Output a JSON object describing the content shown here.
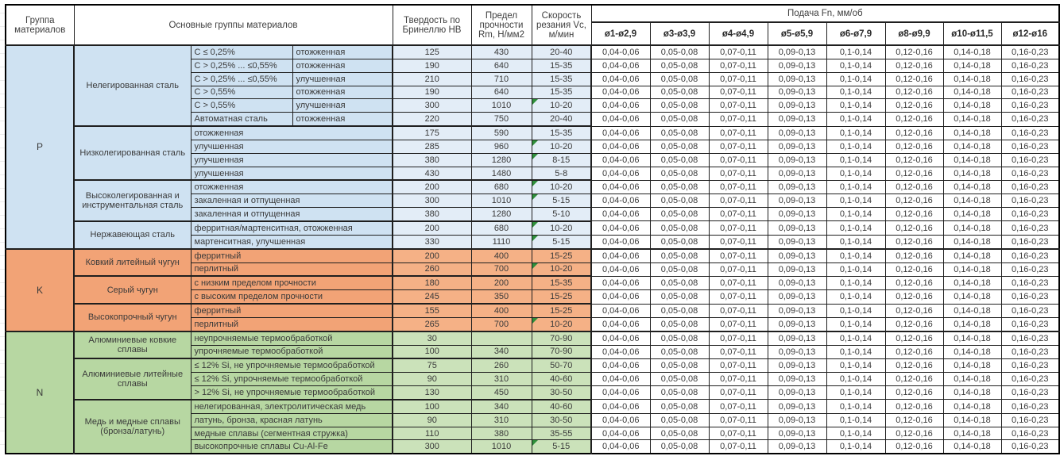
{
  "table": {
    "headers": {
      "group": "Группа материалов",
      "main_groups": "Основные группы материалов",
      "hardness": "Твердость по Бринеллю НВ",
      "strength": "Предел прочности Rm, Н/мм2",
      "speed": "Скорость резания Vc, м/мин",
      "feed": "Подача Fn, мм/об",
      "diameters": [
        "ø1-ø2,9",
        "ø3-ø3,9",
        "ø4-ø4,9",
        "ø5-ø5,9",
        "ø6-ø7,9",
        "ø8-ø9,9",
        "ø10-ø11,5",
        "ø12-ø16"
      ]
    },
    "feed_values_all_rows": [
      "0,04-0,06",
      "0,05-0,08",
      "0,07-0,11",
      "0,09-0,13",
      "0,1-0,14",
      "0,12-0,16",
      "0,14-0,18",
      "0,16-0,23"
    ],
    "colors": {
      "P": {
        "main": "#cfe2f2",
        "values": "#e3edf7"
      },
      "K": {
        "main": "#f2a376",
        "values": "#f5b186"
      },
      "N": {
        "main": "#b7d7a2",
        "values": "#cbe2ba"
      },
      "note_marker": "#2f8f3b"
    },
    "groups": [
      {
        "letter": "P",
        "subgroups": [
          {
            "name": "Нелегированная сталь",
            "rows": [
              {
                "cond1": "C ≤ 0,25%",
                "cond2": "отожженная",
                "hb": "125",
                "rm": "430",
                "vc": "20-40",
                "vc_note_marker": false
              },
              {
                "cond1": "C > 0,25% ... ≤0,55%",
                "cond2": "отожженная",
                "hb": "190",
                "rm": "640",
                "vc": "15-35",
                "vc_note_marker": false
              },
              {
                "cond1": "C > 0,25% ... ≤0,55%",
                "cond2": "улучшенная",
                "hb": "210",
                "rm": "710",
                "vc": "15-35",
                "vc_note_marker": false
              },
              {
                "cond1": "C > 0,55%",
                "cond2": "отожженная",
                "hb": "190",
                "rm": "640",
                "vc": "15-35",
                "vc_note_marker": false
              },
              {
                "cond1": "C > 0,55%",
                "cond2": "улучшенная",
                "hb": "300",
                "rm": "1010",
                "vc": "10-20",
                "vc_note_marker": true
              },
              {
                "cond1": "Автоматная сталь",
                "cond2": "отожженная",
                "hb": "220",
                "rm": "750",
                "vc": "20-40",
                "vc_note_marker": false
              }
            ]
          },
          {
            "name": "Низколегированная сталь",
            "rows": [
              {
                "cond": "отожженная",
                "hb": "175",
                "rm": "590",
                "vc": "15-35",
                "vc_note_marker": false
              },
              {
                "cond": "улучшенная",
                "hb": "285",
                "rm": "960",
                "vc": "10-20",
                "vc_note_marker": true
              },
              {
                "cond": "улучшенная",
                "hb": "380",
                "rm": "1280",
                "vc": "8-15",
                "vc_note_marker": true
              },
              {
                "cond": "улучшенная",
                "hb": "430",
                "rm": "1480",
                "vc": "5-8",
                "vc_note_marker": false
              }
            ]
          },
          {
            "name": "Высоколегированная и инструментальная сталь",
            "rows": [
              {
                "cond": "отожженная",
                "hb": "200",
                "rm": "680",
                "vc": "10-20",
                "vc_note_marker": true
              },
              {
                "cond": "закаленная и отпущенная",
                "hb": "300",
                "rm": "1010",
                "vc": "5-15",
                "vc_note_marker": true
              },
              {
                "cond": "закаленная и отпущенная",
                "hb": "380",
                "rm": "1280",
                "vc": "5-10",
                "vc_note_marker": false
              }
            ]
          },
          {
            "name": "Нержавеющая сталь",
            "rows": [
              {
                "cond": "ферритная/мартенситная, отожженная",
                "hb": "200",
                "rm": "680",
                "vc": "10-20",
                "vc_note_marker": true
              },
              {
                "cond": "мартенситная, улучшенная",
                "hb": "330",
                "rm": "1110",
                "vc": "5-15",
                "vc_note_marker": true
              }
            ]
          }
        ]
      },
      {
        "letter": "K",
        "subgroups": [
          {
            "name": "Ковкий литейный чугун",
            "rows": [
              {
                "cond": "ферритный",
                "hb": "200",
                "rm": "400",
                "vc": "15-25",
                "vc_note_marker": false
              },
              {
                "cond": "перлитный",
                "hb": "260",
                "rm": "700",
                "vc": "10-20",
                "vc_note_marker": true
              }
            ]
          },
          {
            "name": "Серый чугун",
            "rows": [
              {
                "cond": "с низким пределом прочности",
                "hb": "180",
                "rm": "200",
                "vc": "15-35",
                "vc_note_marker": false
              },
              {
                "cond": "с высоким пределом прочности",
                "hb": "245",
                "rm": "350",
                "vc": "15-25",
                "vc_note_marker": false
              }
            ]
          },
          {
            "name": "Высокопрочный чугун",
            "rows": [
              {
                "cond": "ферритный",
                "hb": "155",
                "rm": "400",
                "vc": "15-25",
                "vc_note_marker": false
              },
              {
                "cond": "перлитный",
                "hb": "265",
                "rm": "700",
                "vc": "10-20",
                "vc_note_marker": true
              }
            ]
          }
        ]
      },
      {
        "letter": "N",
        "subgroups": [
          {
            "name": "Алюминиевые ковкие сплавы",
            "rows": [
              {
                "cond": "неупрочняемые термообработкой",
                "hb": "30",
                "rm": "",
                "vc": "70-90",
                "vc_note_marker": false
              },
              {
                "cond": "упрочняемые термообработкой",
                "hb": "100",
                "rm": "340",
                "vc": "70-90",
                "vc_note_marker": false
              }
            ]
          },
          {
            "name": "Алюминиевые литейные сплавы",
            "rows": [
              {
                "cond": "≤ 12% Si, не упрочняемые термообработкой",
                "hb": "75",
                "rm": "260",
                "vc": "50-70",
                "vc_note_marker": false
              },
              {
                "cond": "≤ 12% Si, упрочняемые термообработкой",
                "hb": "90",
                "rm": "310",
                "vc": "40-60",
                "vc_note_marker": false
              },
              {
                "cond": "> 12% Si, не упрочняемые термообработкой",
                "hb": "130",
                "rm": "450",
                "vc": "30-50",
                "vc_note_marker": false
              }
            ]
          },
          {
            "name": "Медь и медные сплавы (бронза/латунь)",
            "rows": [
              {
                "cond": "нелегированная, электролитическая медь",
                "hb": "100",
                "rm": "340",
                "vc": "40-60",
                "vc_note_marker": false
              },
              {
                "cond": "латунь, бронза, красная латунь",
                "hb": "90",
                "rm": "310",
                "vc": "30-50",
                "vc_note_marker": false
              },
              {
                "cond": "медные сплавы (сегментная стружка)",
                "hb": "110",
                "rm": "380",
                "vc": "35-55",
                "vc_note_marker": false
              },
              {
                "cond": "высокопрочные сплавы Cu-Al-Fe",
                "hb": "300",
                "rm": "1010",
                "vc": "5-15",
                "vc_note_marker": true
              }
            ]
          }
        ]
      }
    ]
  }
}
